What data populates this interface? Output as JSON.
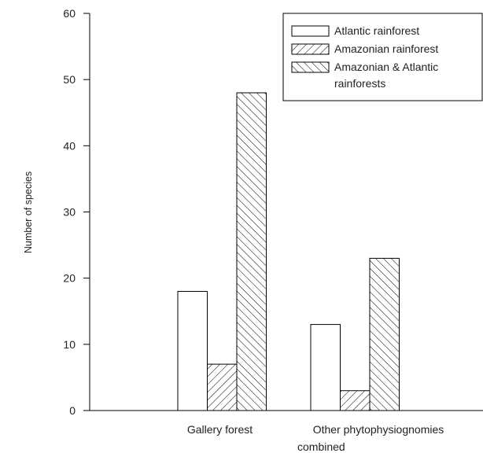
{
  "chart_data": {
    "type": "bar",
    "title": "",
    "xlabel": "",
    "ylabel": "Number of species",
    "ylim": [
      0,
      60
    ],
    "yticks": [
      0,
      10,
      20,
      30,
      40,
      50,
      60
    ],
    "grid": false,
    "legend_position": "top-right",
    "categories": [
      [
        "Gallery forest"
      ],
      [
        "Other phytophysiognomies",
        "combined"
      ]
    ],
    "series": [
      {
        "name": "Atlantic rainforest",
        "pattern": "none",
        "values": [
          18,
          13
        ]
      },
      {
        "name": "Amazonian rainforest",
        "pattern": "forward-diagonal",
        "values": [
          7,
          3
        ]
      },
      {
        "name": "Amazonian & Atlantic rainforests",
        "pattern": "back-diagonal",
        "values": [
          48,
          23
        ]
      }
    ],
    "legend_lines": [
      [
        "Atlantic rainforest"
      ],
      [
        "Amazonian rainforest"
      ],
      [
        "Amazonian & Atlantic",
        "rainforests"
      ]
    ],
    "colors": {
      "stroke": "#000000",
      "fill": "#ffffff",
      "text": "#222222"
    }
  }
}
